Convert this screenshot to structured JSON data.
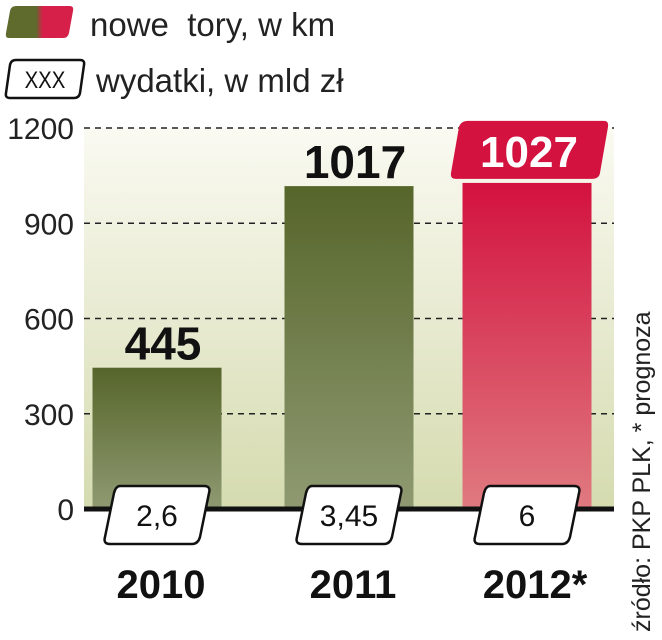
{
  "legend": {
    "items": [
      {
        "kind": "swatch",
        "label": "nowe  tory, w km",
        "colors": [
          "#5e6b2c",
          "#d6204a"
        ]
      },
      {
        "kind": "box",
        "box_text": "XXX",
        "label": "wydatki, w mld zł"
      }
    ]
  },
  "source_note": "źródło: PKP PLK, * prognoza",
  "colors": {
    "green_top": "#56652a",
    "green_bottom": "#8f9a72",
    "red_top": "#d3123f",
    "red_bottom": "#e07a80",
    "bg_top": "#fafaf2",
    "bg_bottom": "#d5dbaf",
    "axis": "#111111"
  },
  "chart_data": {
    "type": "bar",
    "categories": [
      "2010",
      "2011",
      "2012*"
    ],
    "values": [
      445,
      1017,
      1027
    ],
    "value_labels": [
      "445",
      "1017",
      "1027"
    ],
    "spending": [
      "2,6",
      "3,45",
      "6"
    ],
    "highlight_index": 2,
    "yticks": [
      "1200",
      "900",
      "600",
      "300",
      "0"
    ],
    "ytick_values": [
      1200,
      900,
      600,
      300,
      0
    ],
    "ylim": [
      0,
      1200
    ],
    "grid": true
  }
}
